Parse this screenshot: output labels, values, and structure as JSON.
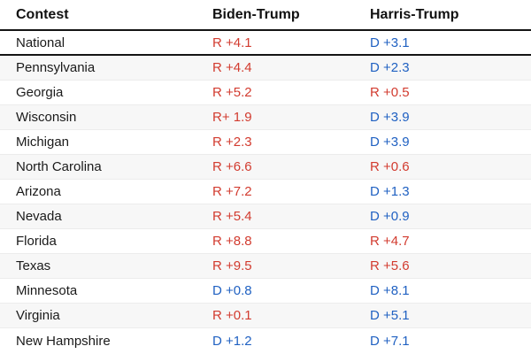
{
  "colors": {
    "republican": "#d23b2f",
    "democrat": "#2061c2",
    "header_text": "#111111",
    "body_text": "#1a1a1a",
    "stripe_bg": "#f7f7f7",
    "thick_rule": "#141414",
    "thin_rule": "#ececec"
  },
  "table": {
    "columns": [
      {
        "label": "Contest"
      },
      {
        "label": "Biden-Trump"
      },
      {
        "label": "Harris-Trump"
      }
    ],
    "national_row": {
      "contest": "National",
      "biden_trump": {
        "text": "R +4.1",
        "party": "R"
      },
      "harris_trump": {
        "text": "D +3.1",
        "party": "D"
      }
    },
    "rows": [
      {
        "contest": "Pennsylvania",
        "biden_trump": {
          "text": "R +4.4",
          "party": "R"
        },
        "harris_trump": {
          "text": "D +2.3",
          "party": "D"
        }
      },
      {
        "contest": "Georgia",
        "biden_trump": {
          "text": "R +5.2",
          "party": "R"
        },
        "harris_trump": {
          "text": "R +0.5",
          "party": "R"
        }
      },
      {
        "contest": "Wisconsin",
        "biden_trump": {
          "text": "R+ 1.9",
          "party": "R"
        },
        "harris_trump": {
          "text": "D +3.9",
          "party": "D"
        }
      },
      {
        "contest": "Michigan",
        "biden_trump": {
          "text": "R +2.3",
          "party": "R"
        },
        "harris_trump": {
          "text": "D +3.9",
          "party": "D"
        }
      },
      {
        "contest": "North Carolina",
        "biden_trump": {
          "text": "R +6.6",
          "party": "R"
        },
        "harris_trump": {
          "text": "R +0.6",
          "party": "R"
        }
      },
      {
        "contest": "Arizona",
        "biden_trump": {
          "text": "R +7.2",
          "party": "R"
        },
        "harris_trump": {
          "text": "D +1.3",
          "party": "D"
        }
      },
      {
        "contest": "Nevada",
        "biden_trump": {
          "text": "R +5.4",
          "party": "R"
        },
        "harris_trump": {
          "text": "D +0.9",
          "party": "D"
        }
      },
      {
        "contest": "Florida",
        "biden_trump": {
          "text": "R +8.8",
          "party": "R"
        },
        "harris_trump": {
          "text": "R +4.7",
          "party": "R"
        }
      },
      {
        "contest": "Texas",
        "biden_trump": {
          "text": "R +9.5",
          "party": "R"
        },
        "harris_trump": {
          "text": "R +5.6",
          "party": "R"
        }
      },
      {
        "contest": "Minnesota",
        "biden_trump": {
          "text": "D +0.8",
          "party": "D"
        },
        "harris_trump": {
          "text": "D +8.1",
          "party": "D"
        }
      },
      {
        "contest": "Virginia",
        "biden_trump": {
          "text": "R +0.1",
          "party": "R"
        },
        "harris_trump": {
          "text": "D +5.1",
          "party": "D"
        }
      },
      {
        "contest": "New Hampshire",
        "biden_trump": {
          "text": "D +1.2",
          "party": "D"
        },
        "harris_trump": {
          "text": "D +7.1",
          "party": "D"
        }
      }
    ]
  }
}
